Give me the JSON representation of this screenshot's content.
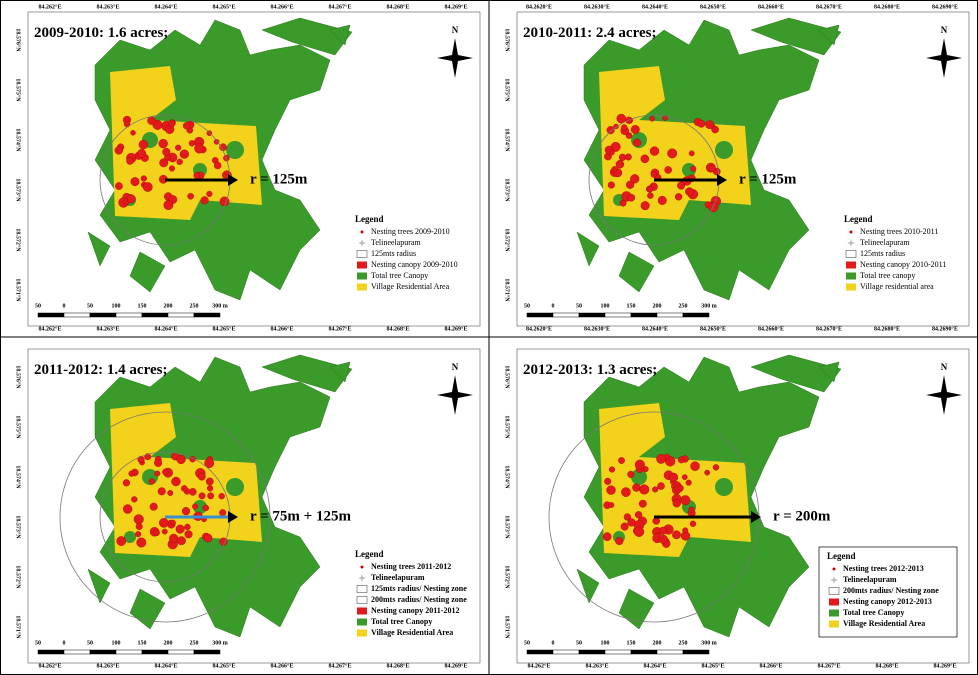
{
  "panels": [
    {
      "period": "2009-2010:",
      "area": "1.6 acres;",
      "radius_label": "r = 125m",
      "north": "N",
      "lon_labels": [
        "84.262°E",
        "84.263°E",
        "84.264°E",
        "84.265°E",
        "84.266°E",
        "84.267°E",
        "84.268°E",
        "84.269°E"
      ],
      "lat_labels": [
        "18.576°N",
        "18.575°N",
        "18.574°N",
        "18.573°N",
        "18.572°N",
        "18.571°N"
      ],
      "scale_labels": [
        "50",
        "0",
        "50",
        "100",
        "150",
        "200",
        "250",
        "300 m"
      ],
      "legend": {
        "title": "Legend",
        "boxed": false,
        "items": [
          {
            "label": "Nesting trees 2009-2010",
            "kind": "dot",
            "color": "#cc0000"
          },
          {
            "label": "Telineelapuram",
            "kind": "star",
            "color": "#bbbbbb"
          },
          {
            "label": "125mts radius",
            "kind": "box",
            "color": "#ffffff"
          },
          {
            "label": "Nesting canopy 2009-2010",
            "kind": "fill",
            "color": "#e31a1c"
          },
          {
            "label": "Total tree Canopy",
            "kind": "fill",
            "color": "#3a9a2a"
          },
          {
            "label": "Village  Residential Area",
            "kind": "fill",
            "color": "#f2d21a"
          }
        ]
      }
    },
    {
      "period": "2010-2011:",
      "area": "2.4 acres;",
      "radius_label": "r = 125m",
      "north": "N",
      "lon_labels": [
        "84.2620°E",
        "84.2630°E",
        "84.2640°E",
        "84.2650°E",
        "84.2660°E",
        "84.2670°E",
        "84.2680°E",
        "84.2690°E"
      ],
      "lat_labels": [
        "18.576°N",
        "18.575°N",
        "18.574°N",
        "18.573°N",
        "18.572°N",
        "18.571°N"
      ],
      "scale_labels": [
        "50",
        "0",
        "50",
        "100",
        "150",
        "200",
        "250",
        "300 m"
      ],
      "legend": {
        "title": "Legend",
        "boxed": false,
        "items": [
          {
            "label": "Nesting trees 2010-2011",
            "kind": "dot",
            "color": "#cc0000"
          },
          {
            "label": "Telineelapuram",
            "kind": "star",
            "color": "#bbbbbb"
          },
          {
            "label": "125mts radius",
            "kind": "box",
            "color": "#ffffff"
          },
          {
            "label": "Nesting canopy 2010-2011",
            "kind": "fill",
            "color": "#e31a1c"
          },
          {
            "label": "Total tree canopy",
            "kind": "fill",
            "color": "#3a9a2a"
          },
          {
            "label": "Village residential area",
            "kind": "fill",
            "color": "#f2d21a"
          }
        ]
      }
    },
    {
      "period": "2011-2012:",
      "area": "1.4 acres;",
      "radius_label": "r = 75m + 125m",
      "north": "N",
      "lon_labels": [
        "84.262°E",
        "84.263°E",
        "84.264°E",
        "84.265°E",
        "84.266°E",
        "84.267°E",
        "84.268°E",
        "84.269°E"
      ],
      "lat_labels": [
        "18.576°N",
        "18.575°N",
        "18.574°N",
        "18.573°N",
        "18.572°N",
        "18.571°N"
      ],
      "scale_labels": [
        "50",
        "0",
        "50",
        "100",
        "150",
        "200",
        "250",
        "300 m"
      ],
      "legend": {
        "title": "Legend",
        "boxed": false,
        "items": [
          {
            "label": "Nesting trees 2011-2012",
            "kind": "dot",
            "color": "#cc0000"
          },
          {
            "label": "Telineelapuram",
            "kind": "star",
            "color": "#bbbbbb"
          },
          {
            "label": "125mts radius/ Nesting zone",
            "kind": "box",
            "color": "#ffffff"
          },
          {
            "label": "200mts radius/ Nesting zone",
            "kind": "box",
            "color": "#ffffff"
          },
          {
            "label": "Nesting canopy 2011-2012",
            "kind": "fill",
            "color": "#e31a1c"
          },
          {
            "label": "Total tree Canopy",
            "kind": "fill",
            "color": "#3a9a2a"
          },
          {
            "label": "Village  Residential Area",
            "kind": "fill",
            "color": "#f2d21a"
          }
        ]
      }
    },
    {
      "period": "2012-2013:",
      "area": "1.3 acres;",
      "radius_label": "r = 200m",
      "north": "N",
      "lon_labels": [
        "84.262°E",
        "84.263°E",
        "84.264°E",
        "84.265°E",
        "84.266°E",
        "84.267°E",
        "84.268°E",
        "84.269°E"
      ],
      "lat_labels": [
        "18.576°N",
        "18.575°N",
        "18.574°N",
        "18.573°N",
        "18.572°N",
        "18.571°N"
      ],
      "scale_labels": [
        "50",
        "0",
        "50",
        "100",
        "150",
        "200",
        "250",
        "300 m"
      ],
      "legend": {
        "title": "Legend",
        "boxed": true,
        "items": [
          {
            "label": "Nesting trees 2012-2013",
            "kind": "dot",
            "color": "#cc0000"
          },
          {
            "label": "Telineelapuram",
            "kind": "star",
            "color": "#bbbbbb"
          },
          {
            "label": "200mts radius/ Nesting zone",
            "kind": "box",
            "color": "#ffffff"
          },
          {
            "label": "Nesting canopy 2012-2013",
            "kind": "fill",
            "color": "#e31a1c"
          },
          {
            "label": "Total tree Canopy",
            "kind": "fill",
            "color": "#3a9a2a"
          },
          {
            "label": "Village  Residential Area",
            "kind": "fill",
            "color": "#f2d21a"
          }
        ]
      }
    }
  ]
}
